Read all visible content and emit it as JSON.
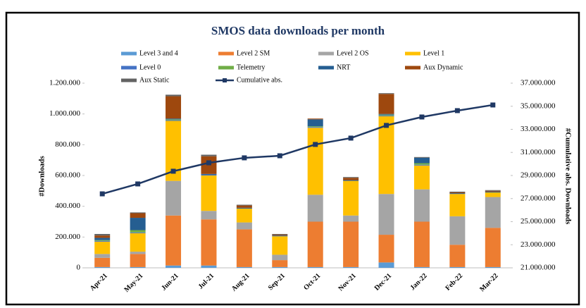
{
  "chart_data": {
    "type": "bar",
    "stacked": true,
    "title": "SMOS data downloads per month",
    "y_label": "#Downloads",
    "y2_label": "#Cumulative abs. Downloads",
    "legend_position": "top",
    "categories": [
      "Apr-21",
      "May-21",
      "Jun-21",
      "Jul-21",
      "Aug-21",
      "Sep-21",
      "Oct-21",
      "Nov-21",
      "Dec-21",
      "Jan-22",
      "Feb-22",
      "Mar-22"
    ],
    "ylim": [
      0,
      1200000
    ],
    "yticks": [
      0,
      {
        "value": 200000,
        "label": "200.000"
      },
      {
        "value": 400000,
        "label": "400.000"
      },
      {
        "value": 600000,
        "label": "600.000"
      },
      {
        "value": 800000,
        "label": "800.000"
      },
      {
        "value": 1000000,
        "label": "1.000.000"
      },
      {
        "value": 1200000,
        "label": "1.200.000"
      }
    ],
    "y2lim": [
      21000000,
      37000000
    ],
    "y2ticks": [
      {
        "value": 21000000,
        "label": "21.000.000"
      },
      {
        "value": 23000000,
        "label": "23.000.000"
      },
      {
        "value": 25000000,
        "label": "25.000.000"
      },
      {
        "value": 27000000,
        "label": "27.000.000"
      },
      {
        "value": 29000000,
        "label": "29.000.000"
      },
      {
        "value": 31000000,
        "label": "31.000.000"
      },
      {
        "value": 33000000,
        "label": "33.000.000"
      },
      {
        "value": 35000000,
        "label": "35.000.000"
      },
      {
        "value": 37000000,
        "label": "37.000.000"
      }
    ],
    "series": [
      {
        "name": "Level 3 and 4",
        "color": "#5b9bd5",
        "values": [
          5000,
          5000,
          15000,
          15000,
          5000,
          5000,
          5000,
          5000,
          35000,
          5000,
          5000,
          5000
        ]
      },
      {
        "name": "Level 2 SM",
        "color": "#ed7d31",
        "values": [
          60000,
          85000,
          325000,
          300000,
          245000,
          45000,
          295000,
          295000,
          180000,
          295000,
          145000,
          255000
        ]
      },
      {
        "name": "Level 2 OS",
        "color": "#a5a5a5",
        "values": [
          25000,
          15000,
          225000,
          55000,
          45000,
          35000,
          175000,
          40000,
          265000,
          210000,
          185000,
          200000
        ]
      },
      {
        "name": "Level 1",
        "color": "#ffc000",
        "values": [
          80000,
          120000,
          390000,
          230000,
          90000,
          120000,
          435000,
          225000,
          505000,
          155000,
          145000,
          30000
        ]
      },
      {
        "name": "Level 0",
        "color": "#4472c4",
        "values": [
          5000,
          5000,
          5000,
          5000,
          0,
          0,
          5000,
          0,
          5000,
          5000,
          0,
          0
        ]
      },
      {
        "name": "Telemetry",
        "color": "#70ad47",
        "values": [
          5000,
          15000,
          5000,
          0,
          0,
          0,
          5000,
          0,
          5000,
          10000,
          0,
          0
        ]
      },
      {
        "name": "NRT",
        "color": "#255e91",
        "values": [
          15000,
          80000,
          5000,
          5000,
          5000,
          5000,
          45000,
          5000,
          5000,
          35000,
          5000,
          5000
        ]
      },
      {
        "name": "Aux Dynamic",
        "color": "#9e480e",
        "values": [
          15000,
          30000,
          145000,
          115000,
          15000,
          5000,
          5000,
          15000,
          130000,
          0,
          5000,
          5000
        ]
      },
      {
        "name": "Aux Static",
        "color": "#636363",
        "values": [
          10000,
          5000,
          10000,
          10000,
          5000,
          5000,
          0,
          5000,
          5000,
          5000,
          5000,
          5000
        ]
      },
      {
        "name": "Cumulative abs.",
        "color": "#1f3864",
        "type": "line",
        "axis": "y2",
        "values": [
          27410000,
          28270000,
          29370000,
          30100000,
          30530000,
          30710000,
          31690000,
          32240000,
          33340000,
          34070000,
          34620000,
          35110000
        ]
      }
    ]
  }
}
